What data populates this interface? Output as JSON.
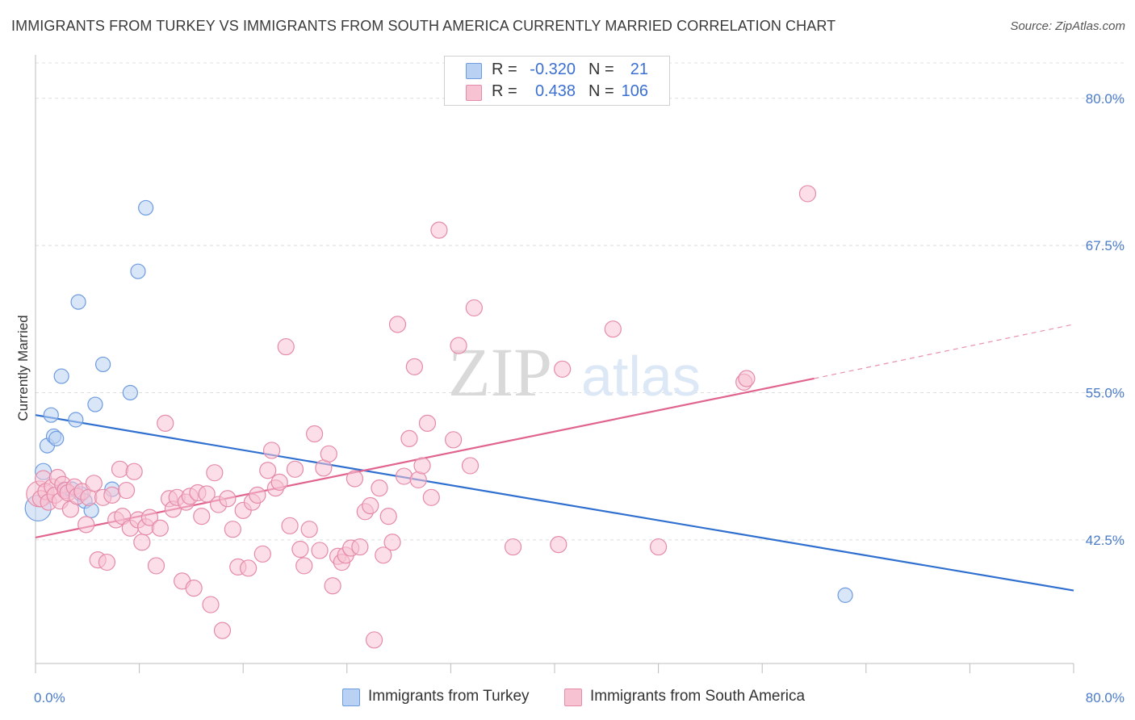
{
  "title": "IMMIGRANTS FROM TURKEY VS IMMIGRANTS FROM SOUTH AMERICA CURRENTLY MARRIED CORRELATION CHART",
  "source": "Source: ZipAtlas.com",
  "watermark": {
    "zip": "ZIP",
    "atlas": "atlas"
  },
  "legend_top": {
    "rows": [
      {
        "r_label": "R =",
        "r_value": "-0.320",
        "n_label": "N =",
        "n_value": "21",
        "color": "#b9d1f3",
        "border": "#6d9be0"
      },
      {
        "r_label": "R =",
        "r_value": "0.438",
        "n_label": "N =",
        "n_value": "106",
        "color": "#f7c3d3",
        "border": "#e58aa8"
      }
    ]
  },
  "legend_bottom": [
    {
      "label": "Immigrants from Turkey",
      "color": "#b9d1f3",
      "border": "#6d9be0"
    },
    {
      "label": "Immigrants from South America",
      "color": "#f7c3d3",
      "border": "#e58aa8"
    }
  ],
  "chart_data": {
    "type": "scatter",
    "title": "IMMIGRANTS FROM TURKEY VS IMMIGRANTS FROM SOUTH AMERICA CURRENTLY MARRIED CORRELATION CHART",
    "xlabel": "",
    "ylabel": "Currently Married",
    "xlim": [
      0,
      80
    ],
    "ylim": [
      32,
      83
    ],
    "x_tick_labels": [
      "0.0%",
      "80.0%"
    ],
    "y_ticks": [
      42.5,
      55.0,
      67.5,
      80.0
    ],
    "y_tick_labels": [
      "42.5%",
      "55.0%",
      "67.5%",
      "80.0%"
    ],
    "grid": true,
    "series": [
      {
        "name": "Immigrants from Turkey",
        "color": "#6d9be0",
        "fill": "#b9d1f3",
        "trend": {
          "x0": 0,
          "y0": 53.1,
          "x1": 80,
          "y1": 38.2,
          "color": "#2f6fd0"
        },
        "points": [
          [
            0.2,
            45.2,
            16
          ],
          [
            0.6,
            48.3,
            10
          ],
          [
            0.9,
            50.5,
            9
          ],
          [
            1.2,
            53.1,
            9
          ],
          [
            1.4,
            51.3,
            9
          ],
          [
            1.6,
            51.1,
            9
          ],
          [
            2.0,
            56.4,
            9
          ],
          [
            2.2,
            46.8,
            9
          ],
          [
            2.8,
            46.8,
            9
          ],
          [
            3.1,
            52.7,
            9
          ],
          [
            3.3,
            62.7,
            9
          ],
          [
            3.5,
            46.4,
            9
          ],
          [
            3.8,
            45.8,
            9
          ],
          [
            4.3,
            45.0,
            9
          ],
          [
            4.6,
            54.0,
            9
          ],
          [
            5.2,
            57.4,
            9
          ],
          [
            5.9,
            46.8,
            9
          ],
          [
            7.3,
            55.0,
            9
          ],
          [
            7.9,
            65.3,
            9
          ],
          [
            8.5,
            70.7,
            9
          ],
          [
            62.4,
            37.8,
            9
          ]
        ]
      },
      {
        "name": "Immigrants from South America",
        "color": "#e58aa8",
        "fill": "#f7c3d3",
        "trend": {
          "x0": 0,
          "y0": 42.7,
          "x1": 60,
          "y1": 56.2,
          "color": "#e0648e",
          "dash_to": {
            "x": 80,
            "y": 60.8
          }
        },
        "points": [
          [
            0.3,
            46.4,
            16
          ],
          [
            0.4,
            46.0,
            10
          ],
          [
            0.6,
            47.7,
            10
          ],
          [
            0.8,
            46.6,
            10
          ],
          [
            1.0,
            45.7,
            10
          ],
          [
            1.3,
            47.0,
            10
          ],
          [
            1.5,
            46.3,
            10
          ],
          [
            1.7,
            47.8,
            10
          ],
          [
            1.9,
            45.8,
            10
          ],
          [
            2.1,
            47.2,
            10
          ],
          [
            2.3,
            46.7,
            10
          ],
          [
            2.5,
            46.5,
            10
          ],
          [
            2.7,
            45.1,
            10
          ],
          [
            3.0,
            47.0,
            10
          ],
          [
            3.2,
            46.2,
            10
          ],
          [
            3.6,
            46.6,
            10
          ],
          [
            3.9,
            43.8,
            10
          ],
          [
            4.1,
            46.1,
            10
          ],
          [
            4.5,
            47.3,
            10
          ],
          [
            4.8,
            40.8,
            10
          ],
          [
            5.2,
            46.1,
            10
          ],
          [
            5.5,
            40.6,
            10
          ],
          [
            5.9,
            46.3,
            10
          ],
          [
            6.2,
            44.2,
            10
          ],
          [
            6.5,
            48.5,
            10
          ],
          [
            6.7,
            44.5,
            10
          ],
          [
            7.0,
            46.7,
            10
          ],
          [
            7.3,
            43.5,
            10
          ],
          [
            7.6,
            48.3,
            10
          ],
          [
            7.9,
            44.2,
            10
          ],
          [
            8.2,
            42.3,
            10
          ],
          [
            8.5,
            43.6,
            10
          ],
          [
            8.8,
            44.4,
            10
          ],
          [
            9.3,
            40.3,
            10
          ],
          [
            9.6,
            43.5,
            10
          ],
          [
            10.0,
            52.4,
            10
          ],
          [
            10.3,
            46.0,
            10
          ],
          [
            10.6,
            45.1,
            10
          ],
          [
            10.9,
            46.1,
            10
          ],
          [
            11.3,
            39.0,
            10
          ],
          [
            11.6,
            45.7,
            10
          ],
          [
            11.9,
            46.2,
            10
          ],
          [
            12.2,
            38.4,
            10
          ],
          [
            12.5,
            46.5,
            10
          ],
          [
            12.8,
            44.5,
            10
          ],
          [
            13.2,
            46.4,
            10
          ],
          [
            13.5,
            37.0,
            10
          ],
          [
            13.8,
            48.2,
            10
          ],
          [
            14.1,
            45.5,
            10
          ],
          [
            14.4,
            34.8,
            10
          ],
          [
            14.8,
            46.0,
            10
          ],
          [
            15.2,
            43.4,
            10
          ],
          [
            15.6,
            40.2,
            10
          ],
          [
            16.0,
            45.0,
            10
          ],
          [
            16.4,
            40.1,
            10
          ],
          [
            16.7,
            45.7,
            10
          ],
          [
            17.1,
            46.3,
            10
          ],
          [
            17.5,
            41.3,
            10
          ],
          [
            17.9,
            48.4,
            10
          ],
          [
            18.2,
            50.1,
            10
          ],
          [
            18.5,
            46.9,
            10
          ],
          [
            18.8,
            47.4,
            10
          ],
          [
            19.3,
            58.9,
            10
          ],
          [
            19.6,
            43.7,
            10
          ],
          [
            20.0,
            48.5,
            10
          ],
          [
            20.4,
            41.7,
            10
          ],
          [
            20.7,
            40.3,
            10
          ],
          [
            21.1,
            43.4,
            10
          ],
          [
            21.5,
            51.5,
            10
          ],
          [
            21.9,
            41.6,
            10
          ],
          [
            22.2,
            48.6,
            10
          ],
          [
            22.6,
            49.8,
            10
          ],
          [
            22.9,
            38.6,
            10
          ],
          [
            23.3,
            41.1,
            10
          ],
          [
            23.6,
            40.6,
            10
          ],
          [
            23.9,
            41.2,
            10
          ],
          [
            24.3,
            41.8,
            10
          ],
          [
            24.6,
            47.7,
            10
          ],
          [
            25.0,
            41.9,
            10
          ],
          [
            25.4,
            44.9,
            10
          ],
          [
            25.8,
            45.4,
            10
          ],
          [
            26.1,
            34.0,
            10
          ],
          [
            26.5,
            46.9,
            10
          ],
          [
            26.8,
            41.2,
            10
          ],
          [
            27.2,
            44.5,
            10
          ],
          [
            27.5,
            42.3,
            10
          ],
          [
            27.9,
            60.8,
            10
          ],
          [
            28.4,
            47.9,
            10
          ],
          [
            28.8,
            51.1,
            10
          ],
          [
            29.2,
            57.2,
            10
          ],
          [
            29.5,
            47.6,
            10
          ],
          [
            29.8,
            48.8,
            10
          ],
          [
            30.2,
            52.4,
            10
          ],
          [
            30.5,
            46.1,
            10
          ],
          [
            31.1,
            68.8,
            10
          ],
          [
            32.2,
            51.0,
            10
          ],
          [
            32.6,
            59.0,
            10
          ],
          [
            33.5,
            48.8,
            10
          ],
          [
            33.8,
            62.2,
            10
          ],
          [
            36.8,
            41.9,
            10
          ],
          [
            40.3,
            42.1,
            10
          ],
          [
            40.6,
            57.0,
            10
          ],
          [
            44.5,
            60.4,
            10
          ],
          [
            48.0,
            41.9,
            10
          ],
          [
            54.6,
            55.9,
            10
          ],
          [
            54.8,
            56.2,
            10
          ],
          [
            59.5,
            71.9,
            10
          ]
        ]
      }
    ]
  }
}
